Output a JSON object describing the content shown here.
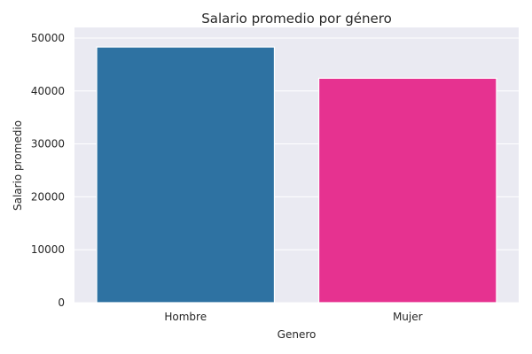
{
  "chart_data": {
    "type": "bar",
    "title": "Salario promedio por género",
    "xlabel": "Genero",
    "ylabel": "Salario promedio",
    "categories": [
      "Hombre",
      "Mujer"
    ],
    "values": [
      48300,
      42400
    ],
    "ylim": [
      0,
      52000
    ],
    "yticks": [
      0,
      10000,
      20000,
      30000,
      40000,
      50000
    ],
    "grid": true,
    "colors": [
      "#2e72a2",
      "#e63290"
    ],
    "background": "#eaeaf2"
  }
}
